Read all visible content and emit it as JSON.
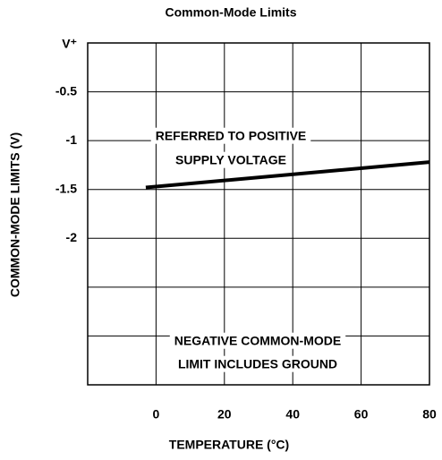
{
  "chart_data": {
    "type": "line",
    "title": "Common-Mode Limits",
    "x_label": "TEMPERATURE (°C)",
    "y_label": "COMMON-MODE LIMITS (V)",
    "annotations": [
      "REFERRED TO POSITIVE",
      "SUPPLY VOLTAGE",
      "NEGATIVE COMMON-MODE",
      "LIMIT INCLUDES GROUND"
    ],
    "x": [
      -3,
      80
    ],
    "series": [
      {
        "name": null,
        "color": "#000000",
        "values": [
          -1.48,
          -1.22
        ]
      }
    ],
    "xlim": [
      -20,
      80
    ],
    "xticks": [
      {
        "value": -20,
        "label": null
      },
      0,
      20,
      40,
      60,
      80
    ],
    "ylim": [
      -3.5,
      0
    ],
    "yticks": [
      {
        "value": 0,
        "label": "V⁺"
      },
      -0.5,
      -1.0,
      -1.5,
      -2.0,
      {
        "value": -2.5,
        "label": null
      },
      {
        "value": -3.0,
        "label": null
      },
      {
        "value": -3.5,
        "label": null
      }
    ],
    "grid": true
  }
}
